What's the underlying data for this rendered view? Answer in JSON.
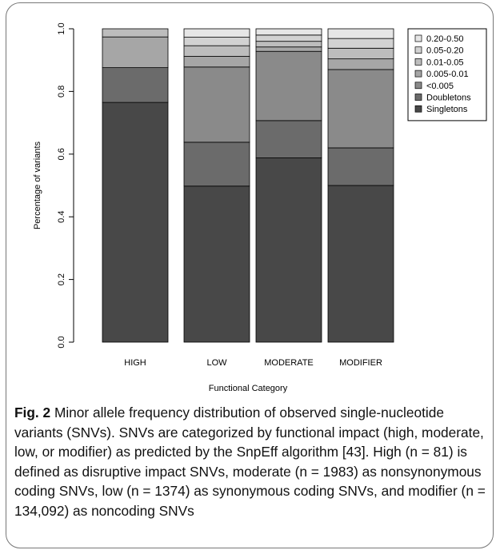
{
  "chart_data": {
    "type": "bar",
    "stacked": true,
    "categories": [
      "HIGH",
      "LOW",
      "MODERATE",
      "MODIFIER"
    ],
    "xlabel": "Functional Category",
    "ylabel": "Percentage of variants",
    "ylim": [
      0,
      1
    ],
    "yticks": [
      "0.0",
      "0.2",
      "0.4",
      "0.6",
      "0.8",
      "1.0"
    ],
    "grid": false,
    "legend_position": "top-right",
    "series": [
      {
        "name": "Singletons",
        "color": "#484848",
        "values": [
          0.765,
          0.498,
          0.588,
          0.5
        ]
      },
      {
        "name": "Doubletons",
        "color": "#6b6b6b",
        "values": [
          0.111,
          0.14,
          0.119,
          0.12
        ]
      },
      {
        "name": "<0.005",
        "color": "#8a8a8a",
        "values": [
          0.0,
          0.24,
          0.221,
          0.25
        ]
      },
      {
        "name": "0.005-0.01",
        "color": "#a6a6a6",
        "values": [
          0.098,
          0.034,
          0.014,
          0.034
        ]
      },
      {
        "name": "0.01-0.05",
        "color": "#bdbdbd",
        "values": [
          0.026,
          0.034,
          0.018,
          0.034
        ]
      },
      {
        "name": "0.05-0.20",
        "color": "#d2d2d2",
        "values": [
          0.0,
          0.027,
          0.02,
          0.031
        ]
      },
      {
        "name": "0.20-0.50",
        "color": "#e6e6e6",
        "values": [
          0.0,
          0.027,
          0.02,
          0.031
        ]
      }
    ]
  },
  "caption": {
    "label": "Fig. 2",
    "text": " Minor allele frequency distribution of observed single-nucleotide variants (SNVs). SNVs are categorized by functional impact (high, moderate, low, or modifier) as predicted by the SnpEff algorithm [43]. High (n = 81) is defined as disruptive impact SNVs, moderate (n = 1983) as nonsynonymous coding SNVs, low (n = 1374) as synonymous coding SNVs, and modifier (n = 134,092) as noncoding SNVs"
  }
}
